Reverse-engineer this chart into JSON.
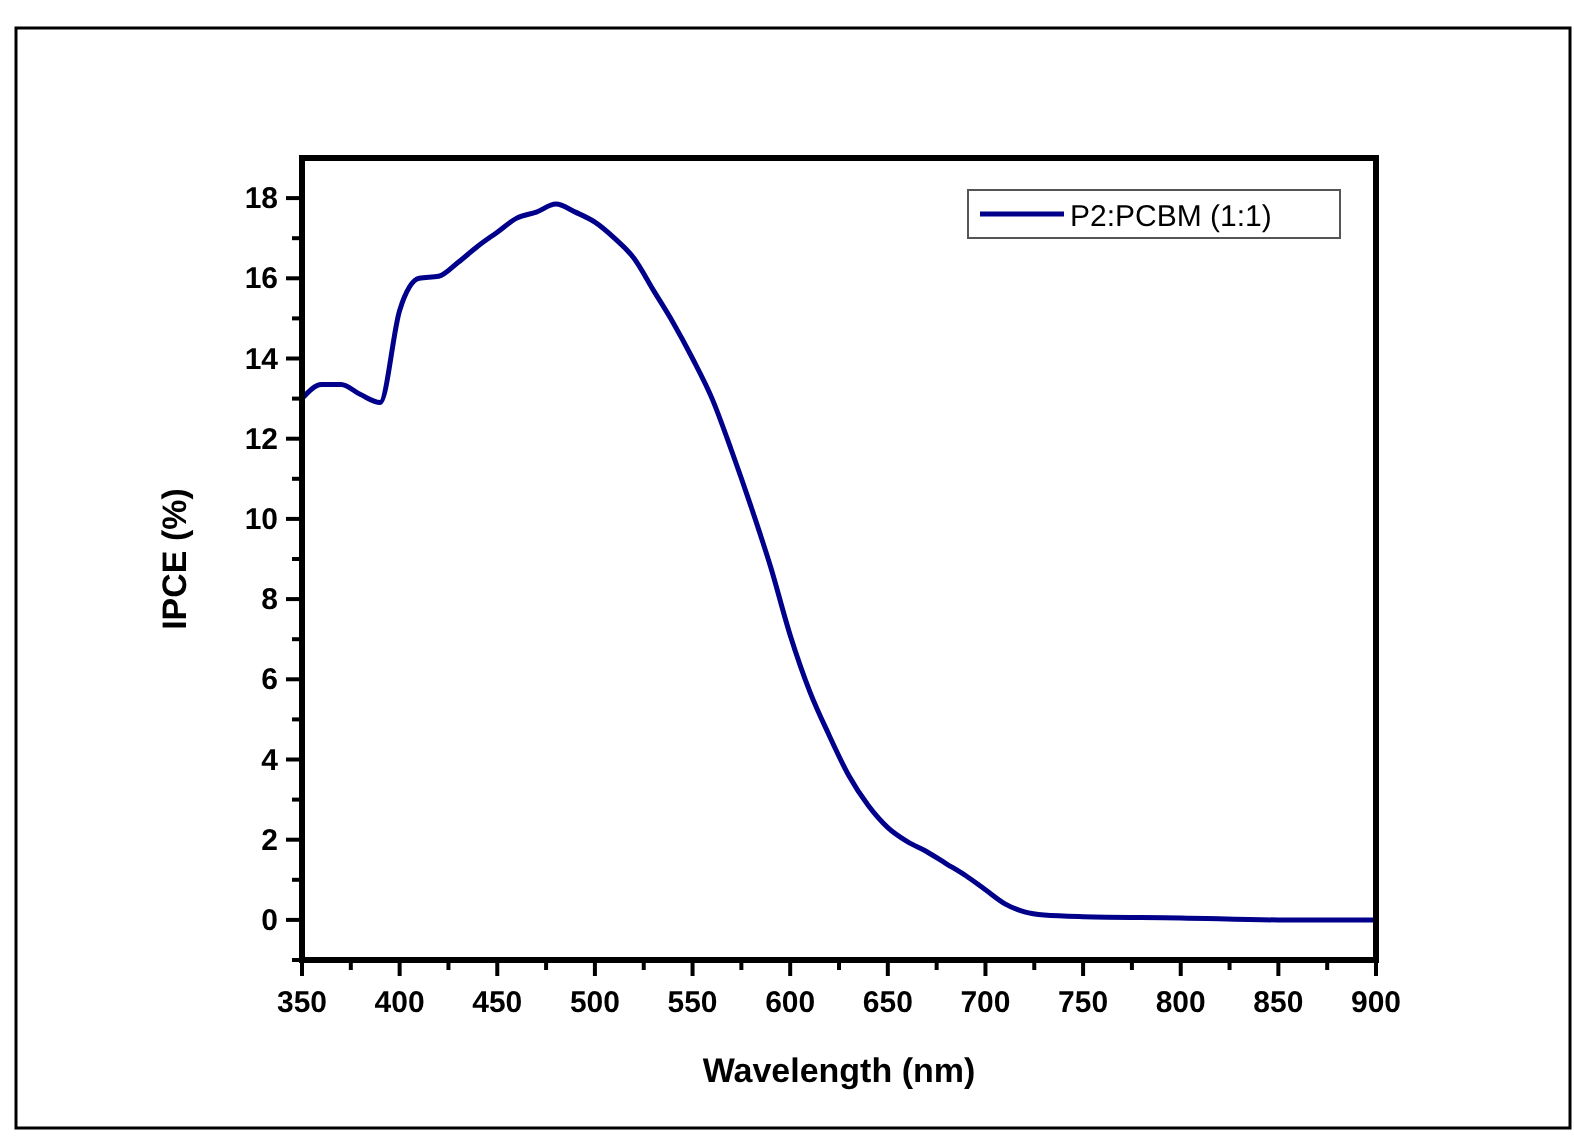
{
  "chart_data": {
    "type": "line",
    "xlabel": "Wavelength (nm)",
    "ylabel": "IPCE (%)",
    "x": [
      350,
      360,
      370,
      380,
      390,
      400,
      410,
      420,
      430,
      440,
      450,
      460,
      470,
      480,
      490,
      500,
      510,
      520,
      530,
      540,
      550,
      560,
      570,
      580,
      590,
      600,
      610,
      620,
      630,
      640,
      650,
      660,
      670,
      680,
      690,
      700,
      710,
      720,
      730,
      750,
      800,
      850,
      900
    ],
    "series": [
      {
        "name": "P2:PCBM (1:1)",
        "color": "#00008b",
        "values": [
          13.0,
          13.35,
          13.35,
          13.1,
          12.9,
          15.2,
          16.0,
          16.05,
          16.4,
          16.8,
          17.15,
          17.5,
          17.65,
          17.85,
          17.65,
          17.4,
          17.0,
          16.5,
          15.7,
          14.9,
          14.0,
          13.0,
          11.7,
          10.3,
          8.8,
          7.1,
          5.7,
          4.6,
          3.6,
          2.85,
          2.3,
          1.95,
          1.7,
          1.4,
          1.1,
          0.75,
          0.4,
          0.2,
          0.12,
          0.08,
          0.05,
          0.0,
          0.0
        ]
      }
    ],
    "xlim": [
      350,
      900
    ],
    "xticks": [
      350,
      {
        "value": 375,
        "label": null
      },
      400,
      {
        "value": 425,
        "label": null
      },
      450,
      {
        "value": 475,
        "label": null
      },
      500,
      {
        "value": 525,
        "label": null
      },
      550,
      {
        "value": 575,
        "label": null
      },
      600,
      {
        "value": 625,
        "label": null
      },
      650,
      {
        "value": 675,
        "label": null
      },
      700,
      {
        "value": 725,
        "label": null
      },
      750,
      {
        "value": 775,
        "label": null
      },
      800,
      {
        "value": 825,
        "label": null
      },
      850,
      {
        "value": 875,
        "label": null
      },
      900
    ],
    "ylim": [
      -1,
      19
    ],
    "yticks": [
      {
        "value": -1,
        "label": null
      },
      0,
      {
        "value": 1,
        "label": null
      },
      2,
      {
        "value": 3,
        "label": null
      },
      4,
      {
        "value": 5,
        "label": null
      },
      6,
      {
        "value": 7,
        "label": null
      },
      8,
      {
        "value": 9,
        "label": null
      },
      10,
      {
        "value": 11,
        "label": null
      },
      12,
      {
        "value": 13,
        "label": null
      },
      14,
      {
        "value": 15,
        "label": null
      },
      16,
      {
        "value": 17,
        "label": null
      },
      18
    ],
    "legend": "top right",
    "marker": "none",
    "line_style": "solid",
    "grid": false
  }
}
